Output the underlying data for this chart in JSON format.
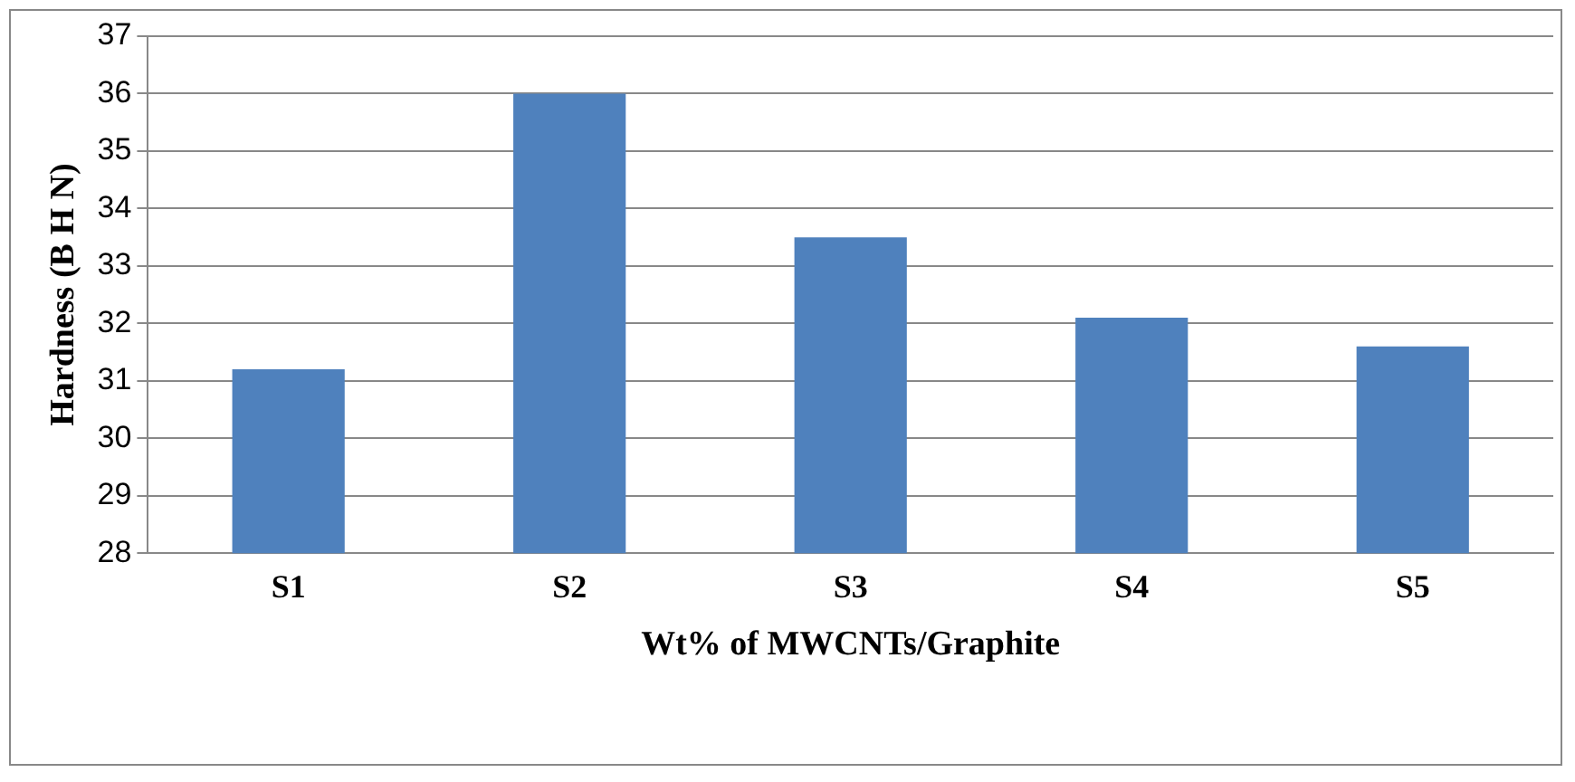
{
  "chart_data": {
    "type": "bar",
    "xlabel": "Wt% of MWCNTs/Graphite",
    "ylabel": "Hardness (B H N)",
    "categories": [
      "S1",
      "S2",
      "S3",
      "S4",
      "S5"
    ],
    "values": [
      31.2,
      36,
      33.5,
      32.1,
      31.6
    ],
    "color": "#4f81bd",
    "ylim": [
      28,
      37
    ],
    "yticks": [
      28,
      29,
      30,
      31,
      32,
      33,
      34,
      35,
      36,
      37
    ],
    "grid": "y",
    "legend": false
  }
}
